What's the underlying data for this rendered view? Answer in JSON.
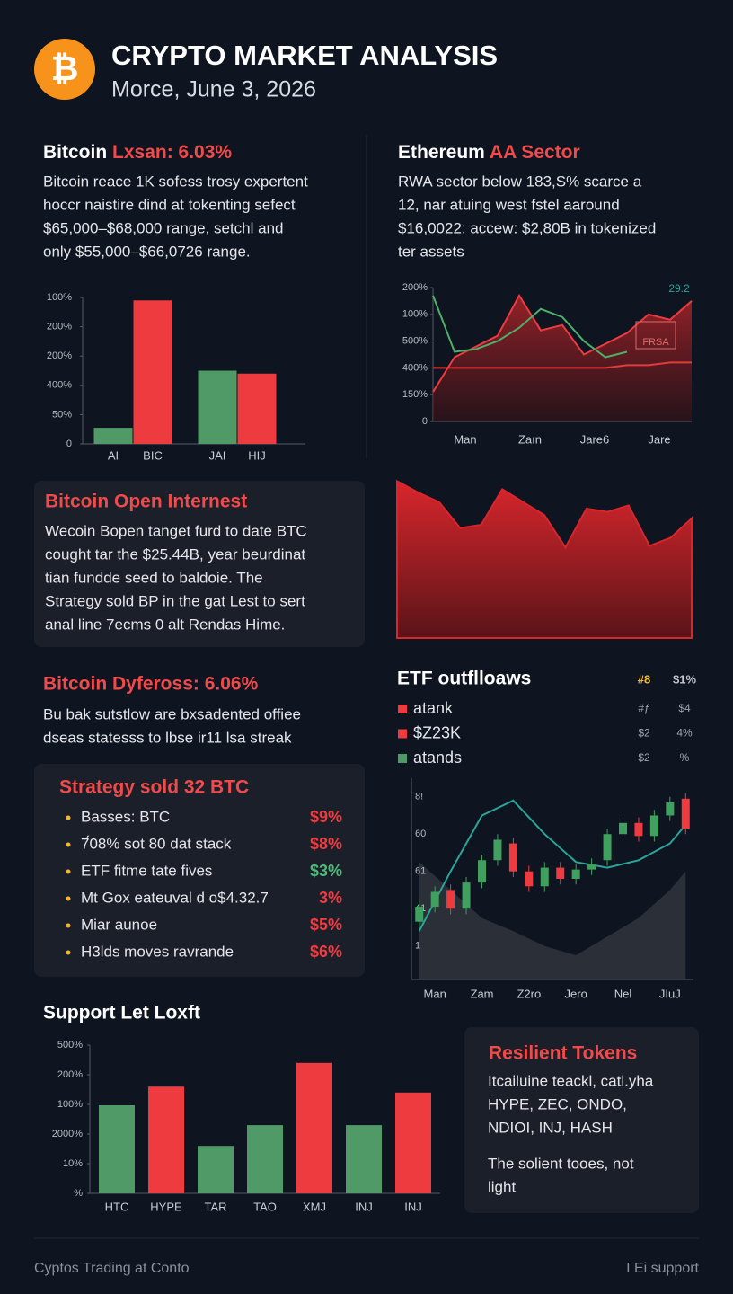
{
  "header": {
    "title": "CRYPTO MARKET ANALYSIS",
    "subtitle": "Morce, June 3, 2026",
    "icon": "₿"
  },
  "sections": [
    {
      "heading_lead": "Bitcoin",
      "heading_accent": "Lxsan: 6.03%",
      "lines": [
        "Bitcoin reace 1K sofess trosy expertent",
        "hoccr naistire dind at tokenting sefect",
        "$65,000–$68,000 range, setchl and",
        "only $55,000–$66,0726 range."
      ]
    },
    {
      "heading_lead": "Ethereum",
      "heading_accent": "AA Sector",
      "lines": [
        "RWA sector below 183,S% scarce a",
        "12, nar atuing west fstel aaround",
        "$16,0022: accew: $2,80B in tokenized",
        "ter assets"
      ]
    },
    {
      "heading": "Bitcoin Open Internest",
      "lines": [
        "Wecoin Bopen tanget furd to date BTC",
        "cought tar the $25.44B, year beurdinat",
        "tian fundde seed to baldoie. The",
        "Strategy sold BP in the gat Lest to sert",
        "anal line 7ecms 0 alt Rendas Hime."
      ]
    },
    {
      "heading": "Bitcoin Dyfeross: 6.06%",
      "lines": [
        "Bu bak sutstlow are bxsadented offiee",
        "dseas statesss to lbse ir11 lsa streak"
      ]
    },
    {
      "heading": "Strategy sold 32 BTC",
      "items": [
        {
          "text": "Basses: BTC",
          "value": "$9%",
          "color": "#ee3b3f"
        },
        {
          "text": "7́08% sot 80 dat stack",
          "value": "$8%",
          "color": "#ee3b3f"
        },
        {
          "text": "ETF fitme tate fives",
          "value": "$3%",
          "color": "#4fb877"
        },
        {
          "text": "Mt Gox eateuval d o$4.32.7",
          "value": "3%",
          "color": "#ee3b3f"
        },
        {
          "text": "Miar aunoe",
          "value": "$5%",
          "color": "#ee3b3f"
        },
        {
          "text": "H3lds moves ravrande",
          "value": "$6%",
          "color": "#ee3b3f"
        }
      ]
    },
    {
      "heading": "Support Let Loxft"
    },
    {
      "heading": "Resilient Tokens",
      "lines": [
        "Itcailuine teackl, catl.yha",
        "HYPE, ZEC, ONDO,",
        "NDIOI, INJ, HASH"
      ],
      "lines2": [
        "The solient tooes, not",
        "light"
      ]
    }
  ],
  "chart_data": [
    {
      "type": "bar",
      "categories": [
        "AI",
        "BIC",
        "JAI",
        "HIJ"
      ],
      "values": [
        0.55,
        4.9,
        2.5,
        2.4
      ],
      "colors": [
        "#4f9a66",
        "#ee3b3f",
        "#4f9a66",
        "#ee3b3f"
      ],
      "ylim": [
        0,
        5
      ],
      "yticks": [
        0,
        {
          "value": 1,
          "label": "50%"
        },
        {
          "value": 2,
          "label": "400%"
        },
        {
          "value": 3,
          "label": "200%"
        },
        {
          "value": 4,
          "label": "200%"
        },
        {
          "value": 5,
          "label": "100%"
        }
      ]
    },
    {
      "type": "line",
      "x": [
        0,
        1,
        2,
        3,
        4,
        5,
        6,
        7,
        8,
        9,
        10,
        11,
        12
      ],
      "xlim": [
        0,
        12
      ],
      "ylim": [
        0,
        5
      ],
      "xticks": [
        {
          "value": 1.5,
          "label": "Man"
        },
        {
          "value": 4.5,
          "label": "Zaın"
        },
        {
          "value": 7.5,
          "label": "Jare6"
        },
        {
          "value": 10.5,
          "label": "Jare"
        }
      ],
      "yticks": [
        0,
        {
          "value": 1,
          "label": "150%"
        },
        {
          "value": 2,
          "label": "400%"
        },
        {
          "value": 3,
          "label": "500%"
        },
        {
          "value": 4,
          "label": "100%"
        },
        {
          "value": 5,
          "label": "200%"
        }
      ],
      "series": [
        {
          "color": "#ee3b3f",
          "area": true,
          "values": [
            1.1,
            2.4,
            2.8,
            3.2,
            4.7,
            3.4,
            3.6,
            2.5,
            2.9,
            3.3,
            4.0,
            3.8,
            4.5
          ]
        },
        {
          "color": "#4caf6a",
          "values": [
            4.7,
            2.6,
            2.7,
            3.0,
            3.5,
            4.2,
            3.9,
            3.0,
            2.4,
            2.6,
            null,
            null,
            null
          ]
        },
        {
          "color": "#e33a3a",
          "values": [
            2.0,
            2.0,
            2.0,
            2.0,
            2.0,
            2.0,
            2.0,
            2.0,
            2.0,
            2.1,
            2.1,
            2.2,
            2.2
          ]
        }
      ],
      "annotations": [
        "29.2",
        "FRSA"
      ]
    },
    {
      "type": "area",
      "color": "#d8262c",
      "ylim": [
        0,
        100
      ],
      "values": [
        97,
        90,
        84,
        68,
        70,
        92,
        84,
        76,
        56,
        80,
        78,
        82,
        57,
        62,
        74
      ]
    },
    {
      "type": "candlestick",
      "title": "ETF outflloaws",
      "x": [
        0,
        1,
        2,
        3,
        4,
        5,
        6,
        7,
        8,
        9,
        10,
        11,
        12,
        13,
        14,
        15,
        16,
        17
      ],
      "xlim": [
        -0.5,
        17.5
      ],
      "ylim": [
        -18,
        90
      ],
      "xticks": [
        {
          "value": 1,
          "label": "Man"
        },
        {
          "value": 4,
          "label": "Zam"
        },
        {
          "value": 7,
          "label": "Z2ro"
        },
        {
          "value": 10,
          "label": "Jero"
        },
        {
          "value": 13,
          "label": "Nel"
        },
        {
          "value": 16,
          "label": "JIuJ"
        }
      ],
      "yticks": [
        {
          "value": 0,
          "label": "1"
        },
        {
          "value": 20,
          "label": "41"
        },
        {
          "value": 40,
          "label": "61"
        },
        60,
        {
          "value": 80,
          "label": "8!"
        }
      ],
      "open": [
        13,
        21,
        30,
        20,
        34,
        46,
        55,
        40,
        32,
        42,
        36,
        41,
        46,
        60,
        66,
        59,
        70,
        79
      ],
      "close": [
        21,
        29,
        20,
        34,
        46,
        57,
        40,
        32,
        42,
        36,
        41,
        44,
        60,
        66,
        59,
        70,
        77,
        63
      ],
      "high": [
        24,
        32,
        33,
        37,
        49,
        60,
        58,
        43,
        45,
        45,
        44,
        47,
        63,
        69,
        69,
        73,
        80,
        82
      ],
      "low": [
        10,
        18,
        17,
        17,
        31,
        43,
        37,
        29,
        29,
        33,
        33,
        38,
        43,
        57,
        56,
        56,
        67,
        60
      ],
      "up_color": "#3fa05f",
      "down_color": "#ee3b3f",
      "trend": {
        "color": "#2aa59a",
        "x": [
          0,
          2,
          4,
          6,
          8,
          10,
          12,
          14,
          16,
          17
        ],
        "values": [
          8,
          40,
          70,
          78,
          60,
          45,
          42,
          46,
          55,
          65
        ]
      },
      "shade": {
        "color": "#2a2f38",
        "x": [
          0,
          2,
          4,
          6,
          8,
          10,
          12,
          14,
          16,
          17
        ],
        "values": [
          45,
          30,
          15,
          8,
          0,
          -5,
          5,
          15,
          30,
          40
        ]
      },
      "legend_header": [
        "#8",
        "$1%"
      ],
      "legend": [
        {
          "name": "atank",
          "color": "#ee3b3f",
          "cols": [
            "#ƒ",
            "$4"
          ]
        },
        {
          "name": "$Z23K",
          "color": "#ee3b3f",
          "cols": [
            "$2",
            "4%"
          ]
        },
        {
          "name": "atands",
          "color": "#4f9a66",
          "cols": [
            "$2",
            "%"
          ]
        }
      ]
    },
    {
      "type": "bar",
      "categories": [
        "HTC",
        "HYPE",
        "TAR",
        "TAO",
        "XMJ",
        "INJ",
        "INJ"
      ],
      "values": [
        2.97,
        3.6,
        1.6,
        2.3,
        4.4,
        2.3,
        3.4
      ],
      "colors": [
        "#4f9a66",
        "#ee3b3f",
        "#4f9a66",
        "#4f9a66",
        "#ee3b3f",
        "#4f9a66",
        "#ee3b3f"
      ],
      "ylim": [
        0,
        5
      ],
      "yticks": [
        {
          "value": 0,
          "label": "%"
        },
        {
          "value": 1,
          "label": "10%"
        },
        {
          "value": 2,
          "label": "2000%"
        },
        {
          "value": 3,
          "label": "100%"
        },
        {
          "value": 4,
          "label": "200%"
        },
        {
          "value": 5,
          "label": "500%"
        }
      ]
    }
  ],
  "footer": {
    "left": "Cyptos Trading at Conto",
    "right": "I Ei support"
  }
}
